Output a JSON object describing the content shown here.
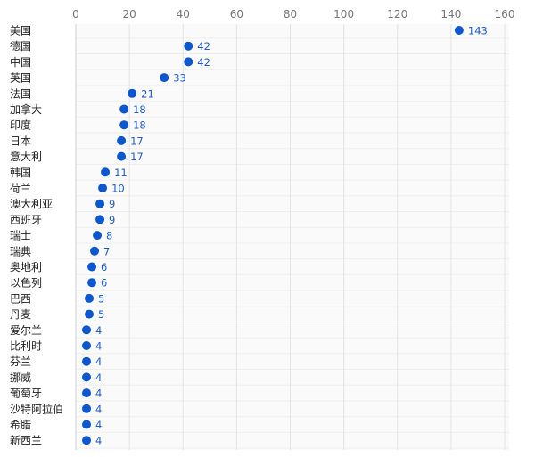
{
  "chart_data": {
    "type": "scatter",
    "orientation": "horizontal",
    "title": "",
    "xlabel": "",
    "ylabel": "",
    "xlim": [
      0,
      160
    ],
    "xticks": [
      0,
      20,
      40,
      60,
      80,
      100,
      120,
      140,
      160
    ],
    "x_axis_position": "top",
    "grid": true,
    "legend": "none",
    "point_color": "#0b57d0",
    "label_color": "#1e5bd4",
    "categories": [
      "美国",
      "德国",
      "中国",
      "英国",
      "法国",
      "加拿大",
      "印度",
      "日本",
      "意大利",
      "韩国",
      "荷兰",
      "澳大利亚",
      "西班牙",
      "瑞士",
      "瑞典",
      "奥地利",
      "以色列",
      "巴西",
      "丹麦",
      "爱尔兰",
      "比利时",
      "芬兰",
      "挪威",
      "葡萄牙",
      "沙特阿拉伯",
      "希腊",
      "新西兰"
    ],
    "values": [
      143,
      42,
      42,
      33,
      21,
      18,
      18,
      17,
      17,
      11,
      10,
      9,
      9,
      8,
      7,
      6,
      6,
      5,
      5,
      4,
      4,
      4,
      4,
      4,
      4,
      4,
      4
    ]
  }
}
